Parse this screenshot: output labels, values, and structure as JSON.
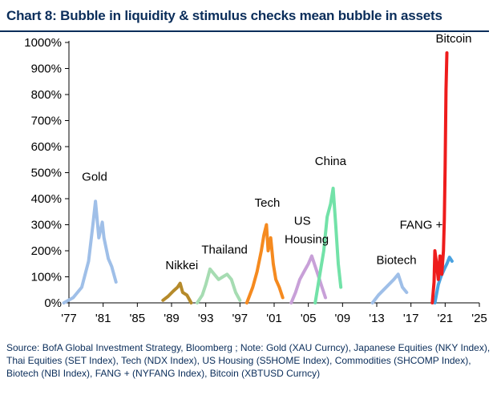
{
  "title": "Chart 8: Bubble in liquidity & stimulus checks mean bubble in assets",
  "source": "Source: BofA Global Investment Strategy, Bloomberg ; Note: Gold (XAU Curncy), Japanese Equities (NKY Index), Thai Equities (SET Index), Tech (NDX Index), US Housing (S5HOME Index), Commodities (SHCOMP Index), Biotech (NBI Index), FANG + (NYFANG Index), Bitcoin (XBTUSD Curncy)",
  "chart_data": {
    "type": "line",
    "title": "Bubble in liquidity & stimulus checks mean bubble in assets",
    "xlabel": "",
    "ylabel": "",
    "ylim": [
      0,
      1000
    ],
    "xlim": [
      1977,
      2025
    ],
    "y_ticks": [
      "0%",
      "100%",
      "200%",
      "300%",
      "400%",
      "500%",
      "600%",
      "700%",
      "800%",
      "900%",
      "1000%"
    ],
    "y_tick_values": [
      0,
      100,
      200,
      300,
      400,
      500,
      600,
      700,
      800,
      900,
      1000
    ],
    "x_ticks": [
      "'77",
      "'81",
      "'85",
      "'89",
      "'93",
      "'97",
      "'01",
      "'05",
      "'09",
      "'13",
      "'17",
      "'21",
      "'25"
    ],
    "x_tick_values": [
      1977,
      1981,
      1985,
      1989,
      1993,
      1997,
      2001,
      2005,
      2009,
      2013,
      2017,
      2021,
      2025
    ],
    "series": [
      {
        "name": "Gold",
        "color": "#9fbfe8",
        "x": [
          1976.4,
          1977.5,
          1978.5,
          1979.3,
          1979.8,
          1980.1,
          1980.5,
          1980.9,
          1981.1,
          1981.6,
          1982.0,
          1982.5
        ],
        "y": [
          0,
          20,
          60,
          160,
          300,
          390,
          250,
          310,
          250,
          170,
          140,
          80
        ]
      },
      {
        "name": "Nikkei",
        "color": "#b58a2a",
        "x": [
          1988.0,
          1988.6,
          1989.2,
          1989.7,
          1990.0,
          1990.3,
          1990.8,
          1991.3
        ],
        "y": [
          10,
          25,
          45,
          60,
          75,
          40,
          30,
          0
        ]
      },
      {
        "name": "Thailand",
        "color": "#a6dcb2",
        "x": [
          1992.0,
          1992.6,
          1993.0,
          1993.5,
          1994.0,
          1994.5,
          1995.0,
          1995.5,
          1996.0,
          1996.5,
          1997.0
        ],
        "y": [
          0,
          30,
          70,
          130,
          110,
          90,
          100,
          110,
          90,
          40,
          10
        ]
      },
      {
        "name": "Tech",
        "color": "#f58a1f",
        "x": [
          1997.8,
          1998.5,
          1999.0,
          1999.5,
          1999.8,
          2000.1,
          2000.3,
          2000.6,
          2000.9,
          2001.2,
          2001.6,
          2002.0
        ],
        "y": [
          0,
          60,
          120,
          200,
          260,
          300,
          200,
          250,
          150,
          90,
          60,
          20
        ]
      },
      {
        "name": "US Housing",
        "color": "#c8a0d8",
        "x": [
          2003.0,
          2003.5,
          2004.0,
          2004.5,
          2005.0,
          2005.4,
          2005.8,
          2006.2,
          2006.6,
          2007.0
        ],
        "y": [
          0,
          40,
          90,
          120,
          150,
          180,
          140,
          100,
          60,
          20
        ]
      },
      {
        "name": "China",
        "color": "#72e2a8",
        "x": [
          2005.8,
          2006.3,
          2006.8,
          2007.2,
          2007.6,
          2007.9,
          2008.2,
          2008.5,
          2008.8
        ],
        "y": [
          0,
          100,
          200,
          330,
          380,
          440,
          300,
          150,
          60
        ]
      },
      {
        "name": "Biotech",
        "color": "#9fbfe8",
        "x": [
          2012.5,
          2013.2,
          2013.8,
          2014.4,
          2015.0,
          2015.5,
          2016.0,
          2016.5
        ],
        "y": [
          0,
          30,
          50,
          70,
          90,
          110,
          60,
          40
        ]
      },
      {
        "name": "FANG +",
        "color": "#4aa2e0",
        "x": [
          2019.8,
          2020.2,
          2020.5,
          2020.9,
          2021.2,
          2021.5,
          2021.8
        ],
        "y": [
          0,
          70,
          100,
          130,
          150,
          175,
          160
        ]
      },
      {
        "name": "Bitcoin",
        "color": "#ee1c1c",
        "x": [
          2019.5,
          2019.7,
          2019.8,
          2020.0,
          2020.2,
          2020.4,
          2020.6,
          2020.8,
          2020.9,
          2021.0,
          2021.1,
          2021.2
        ],
        "y": [
          0,
          80,
          200,
          150,
          90,
          180,
          110,
          200,
          320,
          520,
          820,
          960
        ]
      }
    ],
    "annotations": [
      {
        "text": "Gold",
        "x": 1980.0,
        "y": 470
      },
      {
        "text": "Nikkei",
        "x": 1990.2,
        "y": 130
      },
      {
        "text": "Thailand",
        "x": 1995.2,
        "y": 190
      },
      {
        "text": "Tech",
        "x": 2000.2,
        "y": 370
      },
      {
        "text": "US",
        "x": 2004.3,
        "y": 300
      },
      {
        "text": "Housing",
        "x": 2004.8,
        "y": 230
      },
      {
        "text": "China",
        "x": 2007.6,
        "y": 530
      },
      {
        "text": "Biotech",
        "x": 2015.3,
        "y": 150
      },
      {
        "text": "FANG +",
        "x": 2018.2,
        "y": 285
      },
      {
        "text": "Bitcoin",
        "x": 2022.0,
        "y": 1000
      }
    ]
  }
}
